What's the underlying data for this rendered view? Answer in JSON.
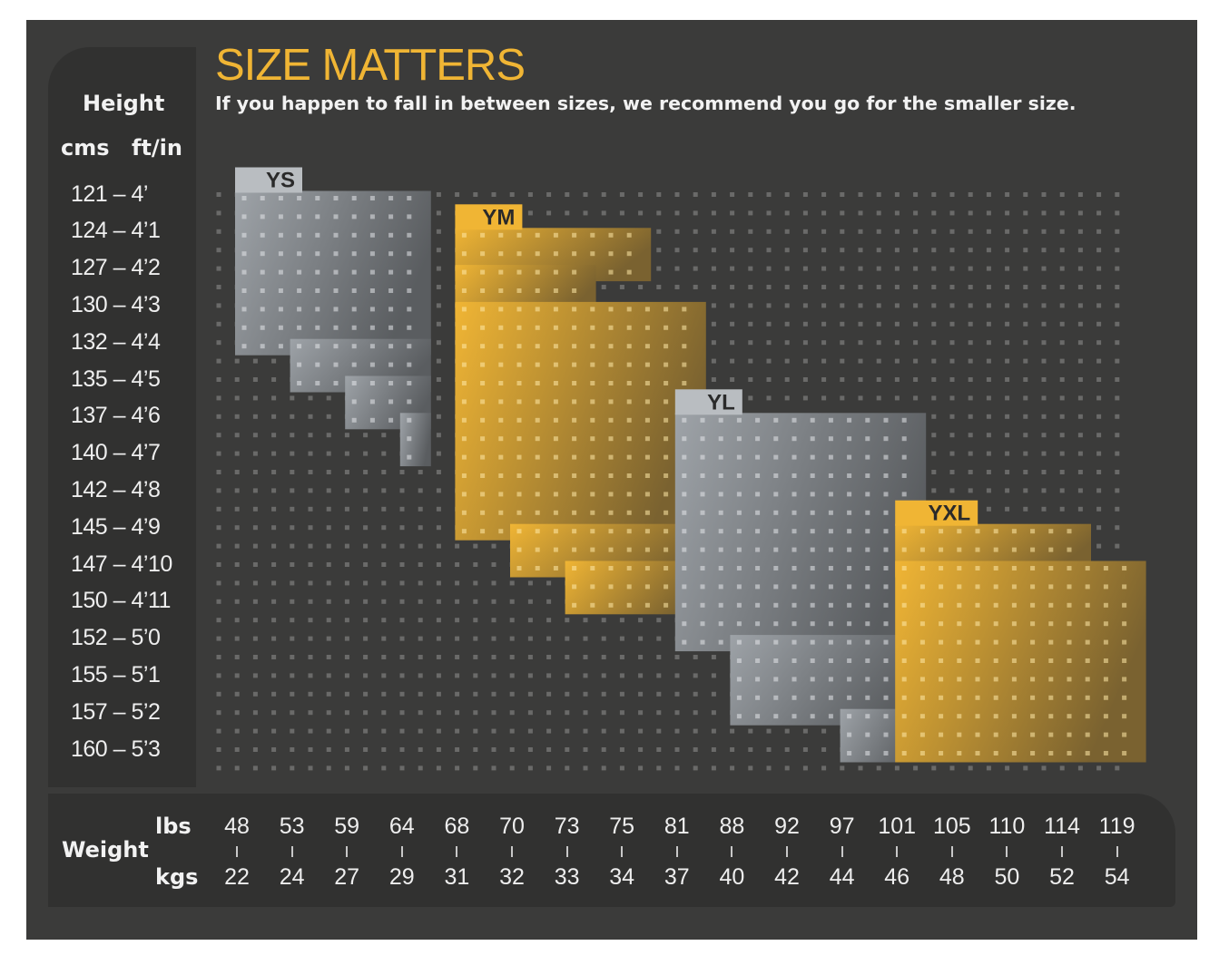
{
  "chart_data": {
    "type": "heatmap",
    "title": "SIZE MATTERS",
    "subtitle": "If you happen to fall in between sizes, we recommend you go for the smaller size.",
    "height_axis": {
      "label": "Height",
      "unit_labels": [
        "cms",
        "ft/in"
      ],
      "ticks": [
        "121 – 4’",
        "124 – 4’1",
        "127 – 4’2",
        "130 – 4’3",
        "132 – 4’4",
        "135 – 4’5",
        "137 – 4’6",
        "140 – 4’7",
        "142 – 4’8",
        "145 – 4’9",
        "147 – 4’10",
        "150 – 4’11",
        "152 – 5’0",
        "155 – 5’1",
        "157 – 5’2",
        "160 – 5’3"
      ]
    },
    "weight_axis": {
      "label": "Weight",
      "lbs_label": "lbs",
      "kgs_label": "kgs",
      "lbs": [
        48,
        53,
        59,
        64,
        68,
        70,
        73,
        75,
        81,
        88,
        92,
        97,
        101,
        105,
        110,
        114,
        119
      ],
      "kgs": [
        22,
        24,
        27,
        29,
        31,
        32,
        33,
        34,
        37,
        40,
        42,
        44,
        46,
        48,
        50,
        52,
        54
      ]
    },
    "sizes": [
      {
        "label": "YS",
        "color": "#9ea3a8",
        "steps": [
          {
            "lbs": [
              48,
              64
            ],
            "cm": [
              121,
              132
            ]
          },
          {
            "lbs": [
              53,
              64
            ],
            "cm": [
              132,
              135
            ]
          },
          {
            "lbs": [
              59,
              64
            ],
            "cm": [
              135,
              137
            ]
          },
          {
            "lbs": [
              64,
              64
            ],
            "cm": [
              137,
              140
            ]
          }
        ]
      },
      {
        "label": "YM",
        "color": "#f0b534",
        "steps": [
          {
            "lbs": [
              68,
              75
            ],
            "cm": [
              124,
              127
            ]
          },
          {
            "lbs": [
              68,
              73
            ],
            "cm": [
              127,
              130
            ]
          },
          {
            "lbs": [
              68,
              81
            ],
            "cm": [
              130,
              145
            ]
          },
          {
            "lbs": [
              70,
              81
            ],
            "cm": [
              145,
              147
            ]
          },
          {
            "lbs": [
              73,
              81
            ],
            "cm": [
              147,
              150
            ]
          }
        ]
      },
      {
        "label": "YL",
        "color": "#9ea3a8",
        "steps": [
          {
            "lbs": [
              81,
              101
            ],
            "cm": [
              137,
              152
            ]
          },
          {
            "lbs": [
              88,
              101
            ],
            "cm": [
              152,
              157
            ]
          },
          {
            "lbs": [
              97,
              101
            ],
            "cm": [
              157,
              160
            ]
          }
        ]
      },
      {
        "label": "YXL",
        "color": "#f0b534",
        "steps": [
          {
            "lbs": [
              101,
              114
            ],
            "cm": [
              145,
              147
            ]
          },
          {
            "lbs": [
              101,
              119
            ],
            "cm": [
              147,
              160
            ]
          }
        ]
      }
    ],
    "dot_grid": true,
    "legend": "none"
  },
  "colors": {
    "background": "#3b3b3a",
    "panel": "#313130",
    "title": "#f0b534",
    "gray_band": "#9ea3a8",
    "gold_band": "#f0b534",
    "dot": "#6a6a69"
  }
}
